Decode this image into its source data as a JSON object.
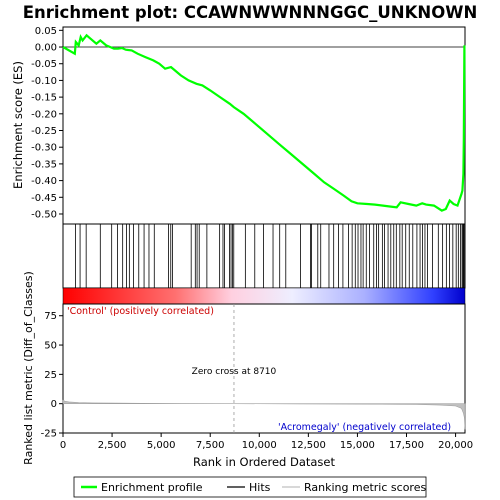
{
  "chart_data": {
    "type": "line",
    "title": "Enrichment plot: CCAWNWWNNNGGC_UNKNOWN",
    "top_panel": {
      "ylabel": "Enrichment score (ES)",
      "ylim": [
        -0.53,
        0.06
      ],
      "yticks": [
        "0.05",
        "0.00",
        "-0.05",
        "-0.10",
        "-0.15",
        "-0.20",
        "-0.25",
        "-0.30",
        "-0.35",
        "-0.40",
        "-0.45",
        "-0.50"
      ],
      "ytick_values": [
        0.05,
        0.0,
        -0.05,
        -0.1,
        -0.15,
        -0.2,
        -0.25,
        -0.3,
        -0.35,
        -0.4,
        -0.45,
        -0.5
      ],
      "series_es": {
        "color": "#00ff00",
        "x": [
          0,
          600,
          650,
          800,
          900,
          1000,
          1200,
          1400,
          1700,
          1900,
          2200,
          2400,
          2600,
          2800,
          3000,
          3200,
          3500,
          3800,
          4200,
          4600,
          4900,
          5200,
          5500,
          5700,
          6000,
          6400,
          6800,
          7100,
          7500,
          8000,
          8500,
          8700,
          9200,
          9800,
          10400,
          11000,
          11600,
          12200,
          12800,
          13300,
          13800,
          14300,
          14700,
          15000,
          15500,
          15900,
          16300,
          16700,
          17000,
          17200,
          17600,
          18000,
          18300,
          18500,
          18900,
          19300,
          19500,
          19700,
          19900,
          20100,
          20300,
          20350,
          20400,
          20420,
          20450
        ],
        "y": [
          0.0,
          -0.02,
          0.015,
          0.005,
          0.03,
          0.02,
          0.035,
          0.025,
          0.01,
          0.02,
          0.005,
          0.0,
          -0.005,
          -0.005,
          -0.003,
          -0.008,
          -0.01,
          -0.02,
          -0.03,
          -0.04,
          -0.05,
          -0.065,
          -0.06,
          -0.07,
          -0.085,
          -0.1,
          -0.11,
          -0.115,
          -0.13,
          -0.15,
          -0.17,
          -0.18,
          -0.2,
          -0.23,
          -0.26,
          -0.29,
          -0.32,
          -0.35,
          -0.38,
          -0.405,
          -0.425,
          -0.445,
          -0.462,
          -0.468,
          -0.47,
          -0.472,
          -0.475,
          -0.478,
          -0.48,
          -0.465,
          -0.47,
          -0.475,
          -0.468,
          -0.472,
          -0.475,
          -0.49,
          -0.485,
          -0.46,
          -0.47,
          -0.475,
          -0.44,
          -0.43,
          -0.38,
          -0.28,
          0.005
        ]
      },
      "hits_x": [
        640,
        870,
        1180,
        1900,
        2480,
        2780,
        3040,
        3230,
        3380,
        3590,
        3860,
        4130,
        4380,
        4650,
        5380,
        5490,
        5580,
        6530,
        6740,
        6830,
        6940,
        7330,
        7980,
        8150,
        8230,
        8480,
        8560,
        8640,
        8700,
        9290,
        9770,
        10210,
        10700,
        11040,
        11350,
        12100,
        12610,
        12660,
        12980,
        13130,
        13550,
        13790,
        14030,
        14260,
        14550,
        14730,
        14890,
        15030,
        15180,
        15290,
        15450,
        15620,
        15830,
        15970,
        16080,
        16270,
        16380,
        16560,
        16700,
        16850,
        16980,
        17160,
        17280,
        17460,
        17640,
        17820,
        18030,
        18190,
        18320,
        18440,
        18570,
        18820,
        19120,
        19340,
        19530,
        19690,
        19860,
        20030,
        20140,
        20250,
        20330,
        20380,
        20420,
        20460
      ]
    },
    "bottom_panel": {
      "ylabel": "Ranked list metric (Diff_of_Classes)",
      "ylim": [
        -25,
        85
      ],
      "yticks": [
        "75",
        "50",
        "25",
        "0",
        "-25"
      ],
      "ytick_values": [
        75,
        50,
        25,
        0,
        -25
      ],
      "ranking_x": [
        0,
        100,
        300,
        800,
        1500,
        2500,
        4000,
        6000,
        8700,
        12000,
        16000,
        18000,
        19200,
        20000,
        20300,
        20400,
        20450,
        20480
      ],
      "ranking_y": [
        3,
        2,
        1.5,
        1,
        0.7,
        0.5,
        0.3,
        0.1,
        0,
        -0.2,
        -0.4,
        -0.6,
        -1.2,
        -2,
        -4,
        -8,
        -12,
        -22
      ],
      "zero_cross_label": "Zero cross at 8710",
      "zero_cross_x": 8710,
      "positive_label": "'Control' (positively correlated)",
      "negative_label": "'Acromegaly' (negatively correlated)"
    },
    "xlabel": "Rank in Ordered Dataset",
    "xlim": [
      0,
      20480
    ],
    "xticks": [
      "0",
      "2,500",
      "5,000",
      "7,500",
      "10,000",
      "12,500",
      "15,000",
      "17,500",
      "20,000"
    ],
    "xtick_values": [
      0,
      2500,
      5000,
      7500,
      10000,
      12500,
      15000,
      17500,
      20000
    ],
    "legend": {
      "placement": "bottom",
      "entries": [
        "Enrichment profile",
        "Hits",
        "Ranking metric scores"
      ],
      "colors": [
        "#00ff00",
        "#000000",
        "#c0c0c0"
      ]
    },
    "colorbar": {
      "positive_color": "#ff0000",
      "negative_color": "#0000ff"
    }
  }
}
